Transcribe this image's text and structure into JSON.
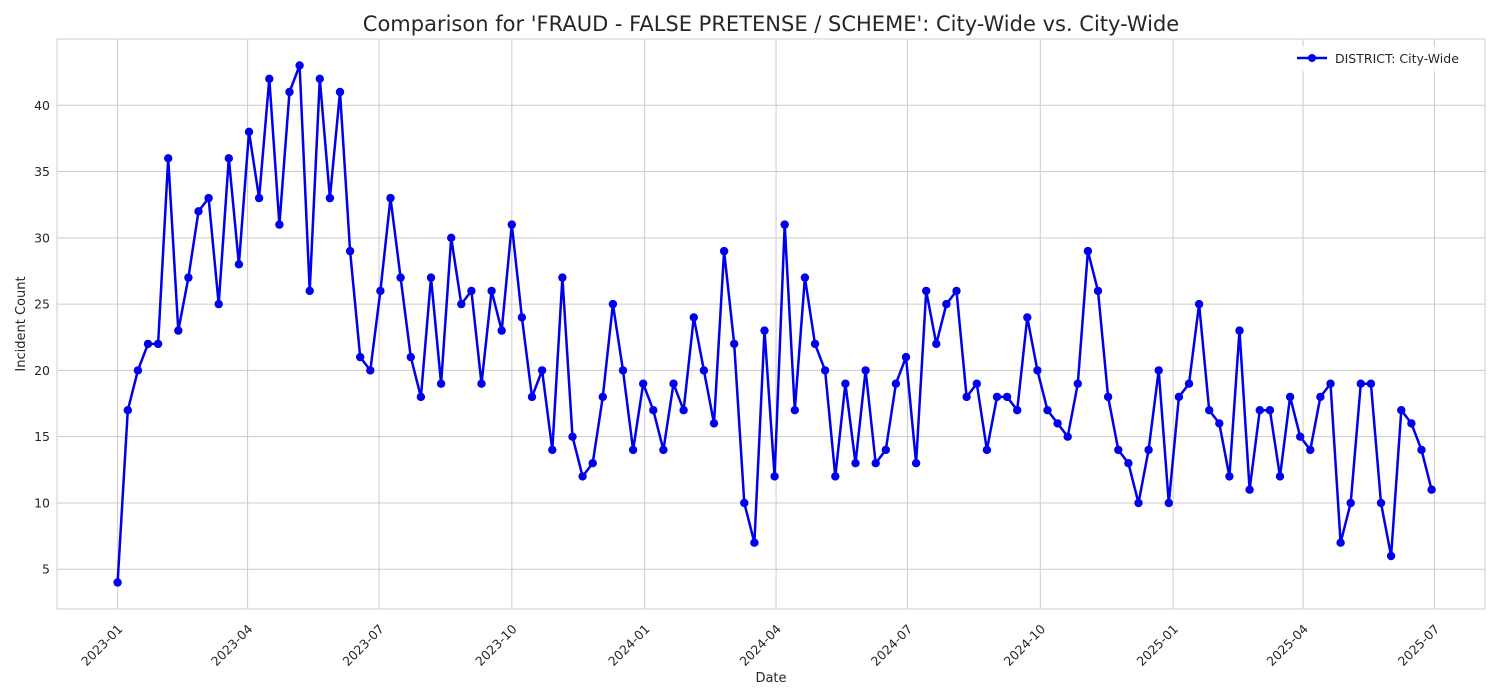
{
  "chart_data": {
    "type": "line",
    "title": "Comparison for 'FRAUD - FALSE PRETENSE / SCHEME': City-Wide vs. City-Wide",
    "xlabel": "Date",
    "ylabel": "Incident Count",
    "x_ticks": [
      "2023-01",
      "2023-04",
      "2023-07",
      "2023-10",
      "2024-01",
      "2024-04",
      "2024-07",
      "2024-10",
      "2025-01",
      "2025-04",
      "2025-07"
    ],
    "y_ticks": [
      5,
      10,
      15,
      20,
      25,
      30,
      35,
      40
    ],
    "xlim": [
      "2022-11-20",
      "2025-08-05"
    ],
    "ylim": [
      2,
      45
    ],
    "grid": true,
    "legend_position": "top-right",
    "series": [
      {
        "name": "DISTRICT: City-Wide",
        "color": "#0000ee",
        "x": [
          "2023-01-01",
          "2023-01-08",
          "2023-01-15",
          "2023-01-22",
          "2023-01-29",
          "2023-02-05",
          "2023-02-12",
          "2023-02-19",
          "2023-02-26",
          "2023-03-05",
          "2023-03-12",
          "2023-03-19",
          "2023-03-26",
          "2023-04-02",
          "2023-04-09",
          "2023-04-16",
          "2023-04-23",
          "2023-04-30",
          "2023-05-07",
          "2023-05-14",
          "2023-05-21",
          "2023-05-28",
          "2023-06-04",
          "2023-06-11",
          "2023-06-18",
          "2023-06-25",
          "2023-07-02",
          "2023-07-09",
          "2023-07-16",
          "2023-07-23",
          "2023-07-30",
          "2023-08-06",
          "2023-08-13",
          "2023-08-20",
          "2023-08-27",
          "2023-09-03",
          "2023-09-10",
          "2023-09-17",
          "2023-09-24",
          "2023-10-01",
          "2023-10-08",
          "2023-10-15",
          "2023-10-22",
          "2023-10-29",
          "2023-11-05",
          "2023-11-12",
          "2023-11-19",
          "2023-11-26",
          "2023-12-03",
          "2023-12-10",
          "2023-12-17",
          "2023-12-24",
          "2023-12-31",
          "2024-01-07",
          "2024-01-14",
          "2024-01-21",
          "2024-01-28",
          "2024-02-04",
          "2024-02-11",
          "2024-02-18",
          "2024-02-25",
          "2024-03-03",
          "2024-03-10",
          "2024-03-17",
          "2024-03-24",
          "2024-03-31",
          "2024-04-07",
          "2024-04-14",
          "2024-04-21",
          "2024-04-28",
          "2024-05-05",
          "2024-05-12",
          "2024-05-19",
          "2024-05-26",
          "2024-06-02",
          "2024-06-09",
          "2024-06-16",
          "2024-06-23",
          "2024-06-30",
          "2024-07-07",
          "2024-07-14",
          "2024-07-21",
          "2024-07-28",
          "2024-08-04",
          "2024-08-11",
          "2024-08-18",
          "2024-08-25",
          "2024-09-01",
          "2024-09-08",
          "2024-09-15",
          "2024-09-22",
          "2024-09-29",
          "2024-10-06",
          "2024-10-13",
          "2024-10-20",
          "2024-10-27",
          "2024-11-03",
          "2024-11-10",
          "2024-11-17",
          "2024-11-24",
          "2024-12-01",
          "2024-12-08",
          "2024-12-15",
          "2024-12-22",
          "2024-12-29",
          "2025-01-05",
          "2025-01-12",
          "2025-01-19",
          "2025-01-26",
          "2025-02-02",
          "2025-02-09",
          "2025-02-16",
          "2025-02-23",
          "2025-03-02",
          "2025-03-09",
          "2025-03-16",
          "2025-03-23",
          "2025-03-30",
          "2025-04-06",
          "2025-04-13",
          "2025-04-20",
          "2025-04-27",
          "2025-05-04",
          "2025-05-11",
          "2025-05-18",
          "2025-05-25",
          "2025-06-01",
          "2025-06-08",
          "2025-06-15",
          "2025-06-22",
          "2025-06-29"
        ],
        "values": [
          4,
          17,
          20,
          22,
          22,
          36,
          23,
          27,
          32,
          33,
          25,
          36,
          28,
          38,
          33,
          42,
          31,
          41,
          43,
          26,
          42,
          33,
          41,
          29,
          21,
          20,
          26,
          33,
          27,
          21,
          18,
          27,
          19,
          30,
          25,
          26,
          19,
          26,
          23,
          31,
          24,
          18,
          20,
          14,
          27,
          15,
          12,
          13,
          18,
          25,
          20,
          14,
          19,
          17,
          14,
          19,
          17,
          24,
          20,
          16,
          29,
          22,
          10,
          7,
          23,
          12,
          31,
          17,
          27,
          22,
          20,
          12,
          19,
          13,
          20,
          13,
          14,
          19,
          21,
          13,
          26,
          22,
          25,
          26,
          18,
          19,
          14,
          18,
          18,
          17,
          24,
          20,
          17,
          16,
          15,
          19,
          29,
          26,
          18,
          14,
          13,
          10,
          14,
          20,
          10,
          18,
          19,
          25,
          17,
          16,
          12,
          23,
          11,
          17,
          17,
          12,
          18,
          15,
          14,
          18,
          19,
          7,
          10,
          19,
          19,
          10,
          6,
          17,
          16,
          14,
          11
        ]
      }
    ]
  }
}
